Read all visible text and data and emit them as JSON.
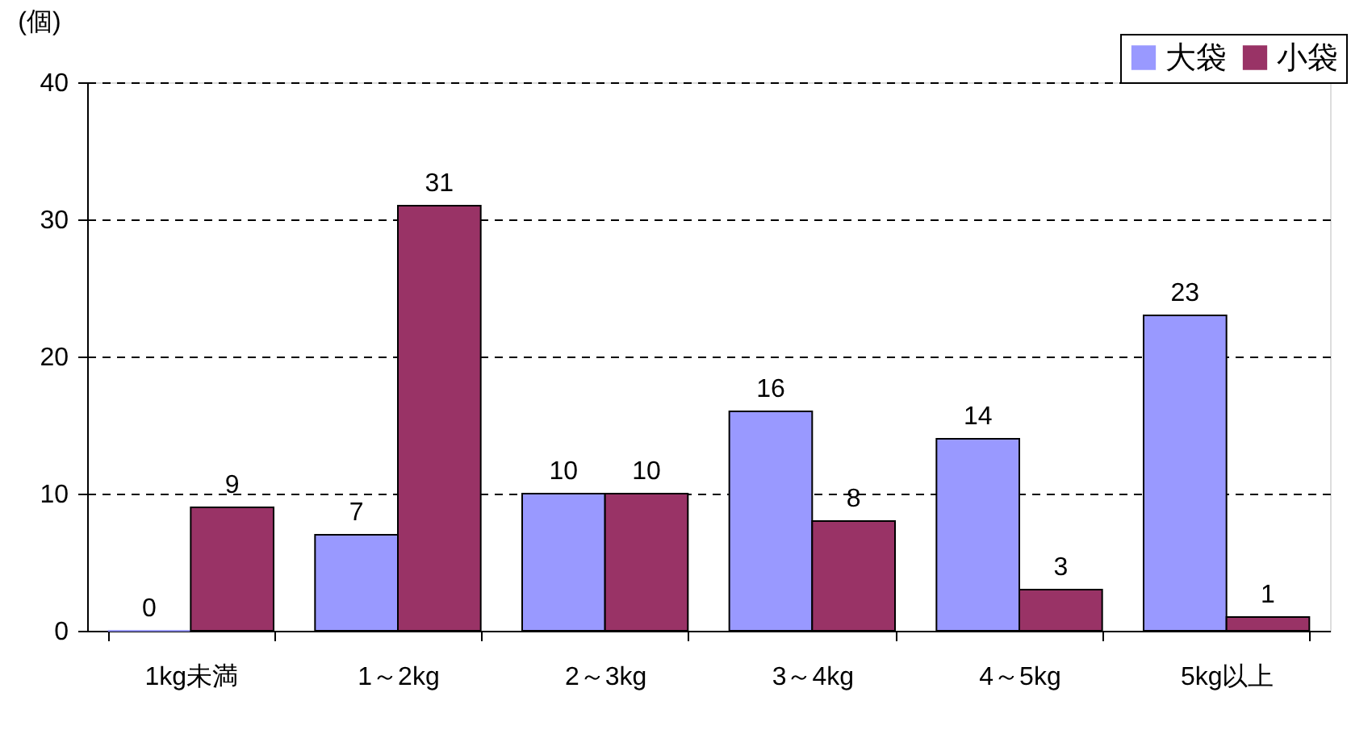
{
  "chart_data": {
    "type": "bar",
    "ylabel": "(個)",
    "categories": [
      "1kg未満",
      "1～2kg",
      "2～3kg",
      "3～4kg",
      "4～5kg",
      "5kg以上"
    ],
    "series": [
      {
        "name": "大袋",
        "color": "#9999ff",
        "values": [
          0,
          7,
          10,
          16,
          14,
          23
        ]
      },
      {
        "name": "小袋",
        "color": "#993366",
        "values": [
          9,
          31,
          10,
          8,
          3,
          1
        ]
      }
    ],
    "ylim": [
      0,
      40
    ],
    "yticks": [
      0,
      10,
      20,
      30,
      40
    ],
    "grid": "y",
    "legend": "top right",
    "data_labels": true
  }
}
